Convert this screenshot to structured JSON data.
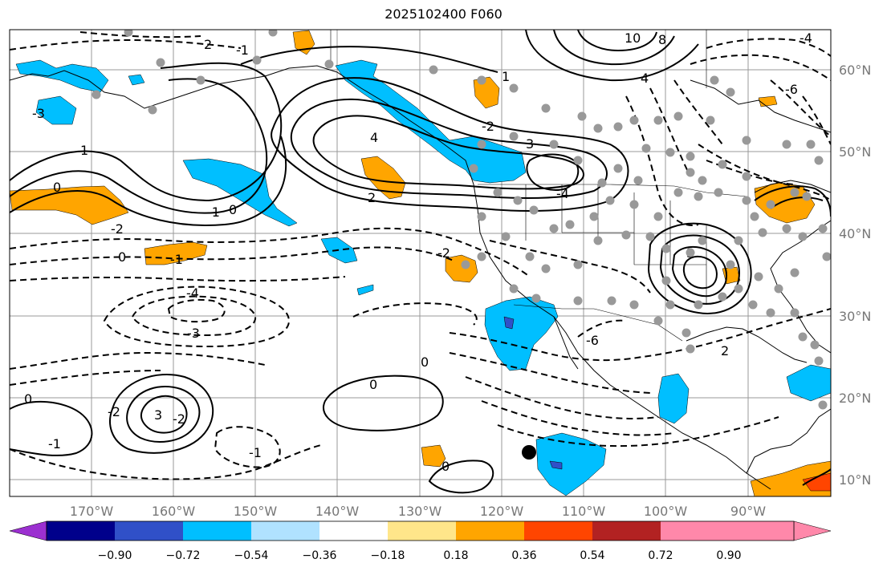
{
  "title": "2025102400 F060",
  "lon_ticks": [
    "170°W",
    "160°W",
    "150°W",
    "140°W",
    "130°W",
    "120°W",
    "110°W",
    "100°W",
    "90°W"
  ],
  "lat_ticks": [
    "60°N",
    "50°N",
    "40°N",
    "30°N",
    "20°N",
    "10°N"
  ],
  "colorbar": {
    "colors": [
      "#9b30d0",
      "#00008b",
      "#3050c8",
      "#00bfff",
      "#b0e2ff",
      "#ffffff",
      "#ffe68a",
      "#ffa500",
      "#ff4500",
      "#b22222",
      "#ff88aa"
    ],
    "labels": [
      "−0.90",
      "−0.72",
      "−0.54",
      "−0.36",
      "−0.18",
      "0.18",
      "0.36",
      "0.54",
      "0.72",
      "0.90"
    ]
  },
  "contour_labels": [
    "10",
    "8",
    "4",
    "-4",
    "-6",
    "1",
    "-1",
    "2",
    "-2",
    "3",
    "-3",
    "4",
    "-4",
    "0",
    "0",
    "-1",
    "1",
    "-2",
    "2",
    "-4",
    "-3",
    "0",
    "0",
    "-1",
    "3",
    "-2",
    "-1",
    "0",
    "-2",
    "3",
    "-1",
    "-2",
    "0",
    "2",
    "-6",
    "0"
  ],
  "markers": {
    "station_color": "#999999",
    "highlight_color": "#000000"
  }
}
